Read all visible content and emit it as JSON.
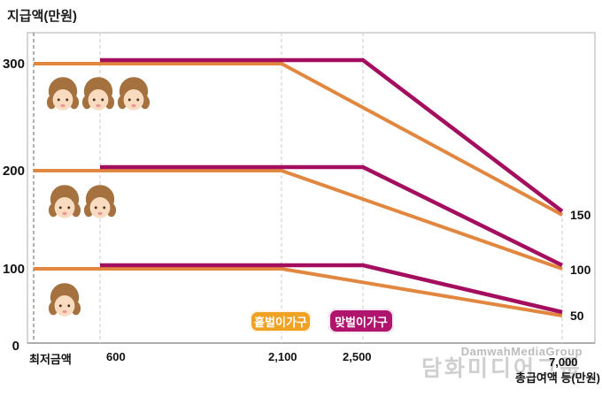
{
  "title": "지급액(만원)",
  "watermark": {
    "line1": "DamwahMediaGroup",
    "line2": "담화미디어그룹"
  },
  "legend": [
    {
      "label": "홑벌이가구",
      "color": "#EFA224"
    },
    {
      "label": "맞벌이가구",
      "color": "#B0156E"
    }
  ],
  "y_axis": {
    "ticks": [
      "300",
      "200",
      "100",
      "0"
    ]
  },
  "x_axis": {
    "label": "총급여액 등(만원)",
    "ticks": [
      "최저금액",
      "600",
      "2,100",
      "2,500",
      "7,000"
    ]
  },
  "end_labels": [
    "150",
    "100",
    "50"
  ],
  "chart_data": {
    "type": "line",
    "title": "지급액(만원)",
    "xlabel": "총급여액 등(만원)",
    "ylabel": "지급액(만원)",
    "x_ticks": [
      "최저금액",
      "600",
      "2,100",
      "2,500",
      "7,000"
    ],
    "ylim": [
      0,
      330
    ],
    "grid": "dashed-vertical",
    "legend_position": "bottom-center",
    "colors": {
      "single_income": "#E2873F",
      "dual_income": "#A40E5E"
    },
    "child_groups": [
      {
        "count": 3,
        "level": 300
      },
      {
        "count": 2,
        "level": 200
      },
      {
        "count": 1,
        "level": 100
      }
    ],
    "series": [
      {
        "name": "홑벌이가구 (자녀 3명)",
        "household": "홑벌이가구",
        "children": 3,
        "color": "#E2873F",
        "points": [
          [
            "최저금액",
            300
          ],
          [
            "2,100",
            300
          ],
          [
            "7,000",
            150
          ]
        ]
      },
      {
        "name": "홑벌이가구 (자녀 2명)",
        "household": "홑벌이가구",
        "children": 2,
        "color": "#E2873F",
        "points": [
          [
            "최저금액",
            200
          ],
          [
            "2,100",
            200
          ],
          [
            "7,000",
            100
          ]
        ]
      },
      {
        "name": "홑벌이가구 (자녀 1명)",
        "household": "홑벌이가구",
        "children": 1,
        "color": "#E2873F",
        "points": [
          [
            "최저금액",
            100
          ],
          [
            "2,100",
            100
          ],
          [
            "7,000",
            50
          ]
        ]
      },
      {
        "name": "맞벌이가구 (자녀 3명)",
        "household": "맞벌이가구",
        "children": 3,
        "color": "#A40E5E",
        "points": [
          [
            "600",
            300
          ],
          [
            "2,500",
            300
          ],
          [
            "7,000",
            150
          ]
        ]
      },
      {
        "name": "맞벌이가구 (자녀 2명)",
        "household": "맞벌이가구",
        "children": 2,
        "color": "#A40E5E",
        "points": [
          [
            "600",
            200
          ],
          [
            "2,500",
            200
          ],
          [
            "7,000",
            100
          ]
        ]
      },
      {
        "name": "맞벌이가구 (자녀 1명)",
        "household": "맞벌이가구",
        "children": 1,
        "color": "#A40E5E",
        "points": [
          [
            "600",
            100
          ],
          [
            "2,500",
            100
          ],
          [
            "7,000",
            50
          ]
        ]
      }
    ]
  }
}
